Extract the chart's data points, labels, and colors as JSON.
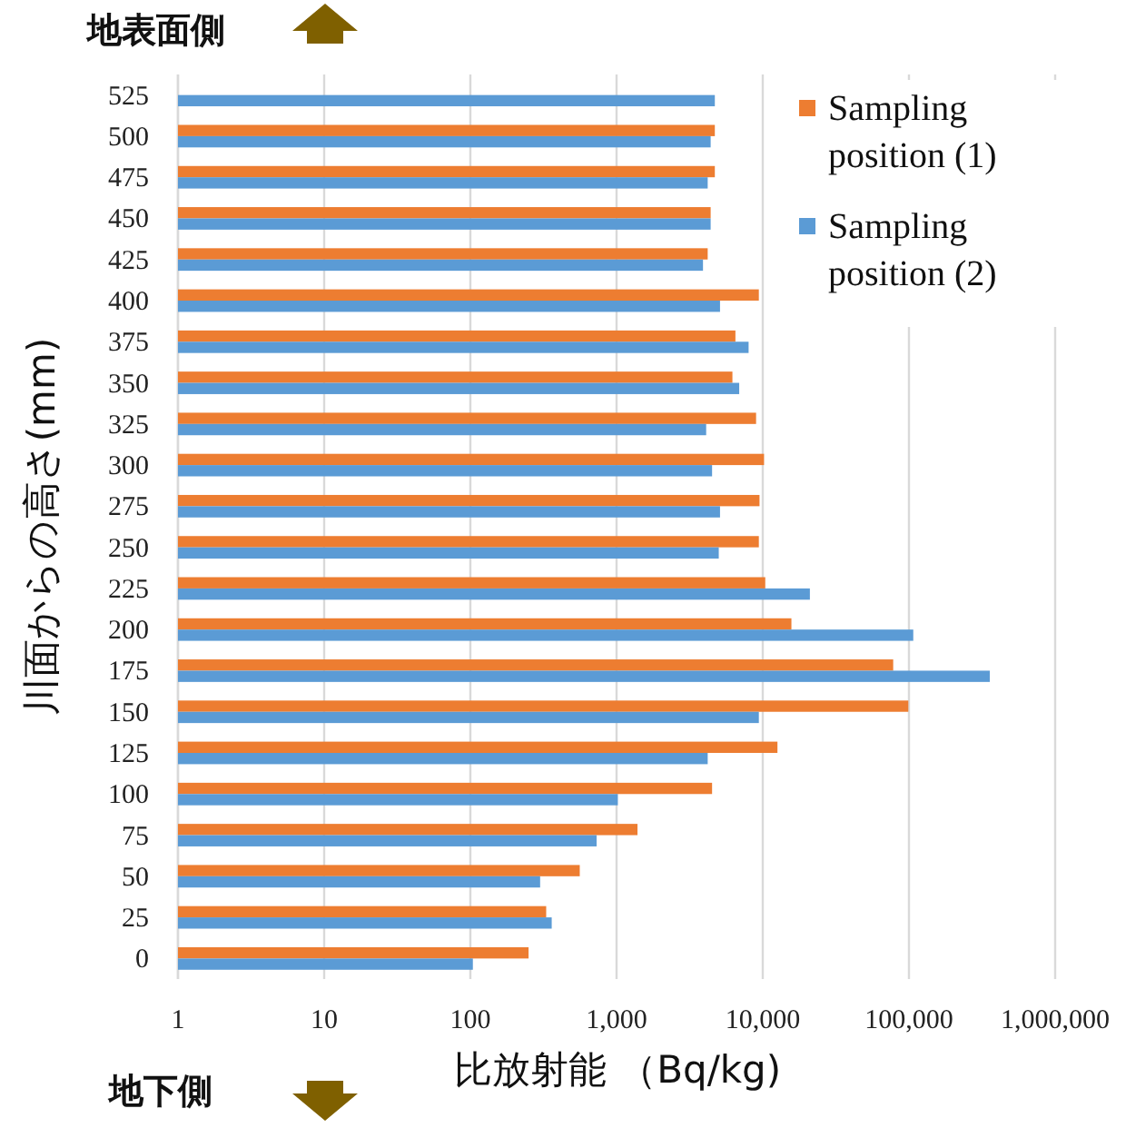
{
  "chart_data": {
    "type": "bar",
    "orientation": "horizontal",
    "xlabel": "比放射能 （Bq/kg)",
    "ylabel": "川面からの高さ(mm)",
    "annotations": [
      "地表面側",
      "地下側"
    ],
    "categories": [
      "525",
      "500",
      "475",
      "450",
      "425",
      "400",
      "375",
      "350",
      "325",
      "300",
      "275",
      "250",
      "225",
      "200",
      "175",
      "150",
      "125",
      "100",
      "75",
      "50",
      "25",
      "0"
    ],
    "series": [
      {
        "name": "Sampling position (1)",
        "color": "#ed7d31",
        "values": [
          null,
          4700,
          4700,
          4400,
          4200,
          9400,
          6500,
          6200,
          9000,
          10200,
          9500,
          9400,
          10400,
          15700,
          78000,
          99000,
          12600,
          4500,
          1390,
          560,
          330,
          250
        ]
      },
      {
        "name": "Sampling position (2)",
        "color": "#5b9bd5",
        "values": [
          4700,
          4400,
          4200,
          4400,
          3900,
          5100,
          8000,
          6900,
          4100,
          4500,
          5100,
          5000,
          21000,
          107000,
          357000,
          9400,
          4200,
          1020,
          730,
          300,
          360,
          104
        ]
      }
    ],
    "log": "x",
    "xlim": [
      1,
      1000000
    ],
    "xticks": [
      1,
      10,
      100,
      {
        "value": 1000,
        "label": "1,000"
      },
      {
        "value": 10000,
        "label": "10,000"
      },
      {
        "value": 100000,
        "label": "100,000"
      },
      {
        "value": 1000000,
        "label": "1,000,000"
      }
    ],
    "grid": "x",
    "legend": "top right"
  }
}
